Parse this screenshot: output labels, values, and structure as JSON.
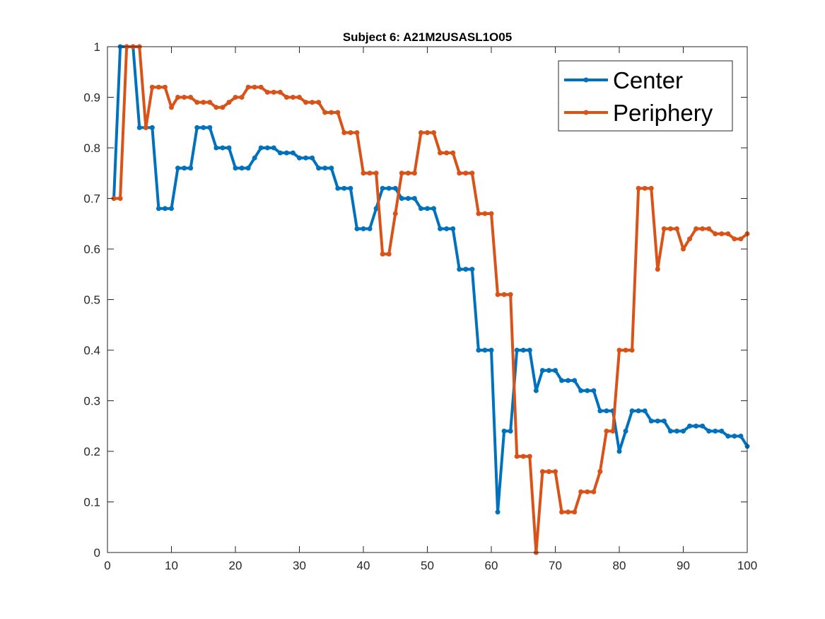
{
  "chart_data": {
    "type": "line",
    "title": "Subject 6: A21M2USASL1O05",
    "xlabel": "",
    "ylabel": "",
    "xlim": [
      0,
      100
    ],
    "ylim": [
      0,
      1
    ],
    "xticks": [
      0,
      10,
      20,
      30,
      40,
      50,
      60,
      70,
      80,
      90,
      100
    ],
    "yticks": [
      0,
      0.1,
      0.2,
      0.3,
      0.4,
      0.5,
      0.6,
      0.7,
      0.8,
      0.9,
      1
    ],
    "xtick_labels": [
      "0",
      "10",
      "20",
      "30",
      "40",
      "50",
      "60",
      "70",
      "80",
      "90",
      "100"
    ],
    "ytick_labels": [
      "0",
      "0.1",
      "0.2",
      "0.3",
      "0.4",
      "0.5",
      "0.6",
      "0.7",
      "0.8",
      "0.9",
      "1"
    ],
    "grid": false,
    "legend_position": "top-right",
    "x": [
      1,
      2,
      3,
      4,
      5,
      6,
      7,
      8,
      9,
      10,
      11,
      12,
      13,
      14,
      15,
      16,
      17,
      18,
      19,
      20,
      21,
      22,
      23,
      24,
      25,
      26,
      27,
      28,
      29,
      30,
      31,
      32,
      33,
      34,
      35,
      36,
      37,
      38,
      39,
      40,
      41,
      42,
      43,
      44,
      45,
      46,
      47,
      48,
      49,
      50,
      51,
      52,
      53,
      54,
      55,
      56,
      57,
      58,
      59,
      60,
      61,
      62,
      63,
      64,
      65,
      66,
      67,
      68,
      69,
      70,
      71,
      72,
      73,
      74,
      75,
      76,
      77,
      78,
      79,
      80,
      81,
      82,
      83,
      84,
      85,
      86,
      87,
      88,
      89,
      90,
      91,
      92,
      93,
      94,
      95,
      96,
      97,
      98,
      99,
      100
    ],
    "series": [
      {
        "name": "Center",
        "color": "#0072BD",
        "values": [
          0.7,
          1.0,
          1.0,
          1.0,
          0.84,
          0.84,
          0.84,
          0.68,
          0.68,
          0.68,
          0.76,
          0.76,
          0.76,
          0.84,
          0.84,
          0.84,
          0.8,
          0.8,
          0.8,
          0.76,
          0.76,
          0.76,
          0.78,
          0.8,
          0.8,
          0.8,
          0.79,
          0.79,
          0.79,
          0.78,
          0.78,
          0.78,
          0.76,
          0.76,
          0.76,
          0.72,
          0.72,
          0.72,
          0.64,
          0.64,
          0.64,
          0.68,
          0.72,
          0.72,
          0.72,
          0.7,
          0.7,
          0.7,
          0.68,
          0.68,
          0.68,
          0.64,
          0.64,
          0.64,
          0.56,
          0.56,
          0.56,
          0.4,
          0.4,
          0.4,
          0.08,
          0.24,
          0.24,
          0.4,
          0.4,
          0.4,
          0.32,
          0.36,
          0.36,
          0.36,
          0.34,
          0.34,
          0.34,
          0.32,
          0.32,
          0.32,
          0.28,
          0.28,
          0.28,
          0.2,
          0.24,
          0.28,
          0.28,
          0.28,
          0.26,
          0.26,
          0.26,
          0.24,
          0.24,
          0.24,
          0.25,
          0.25,
          0.25,
          0.24,
          0.24,
          0.24,
          0.23,
          0.23,
          0.23,
          0.21
        ]
      },
      {
        "name": "Periphery",
        "color": "#D95319",
        "values": [
          0.7,
          0.7,
          1.0,
          1.0,
          1.0,
          0.84,
          0.92,
          0.92,
          0.92,
          0.88,
          0.9,
          0.9,
          0.9,
          0.89,
          0.89,
          0.89,
          0.88,
          0.88,
          0.89,
          0.9,
          0.9,
          0.92,
          0.92,
          0.92,
          0.91,
          0.91,
          0.91,
          0.9,
          0.9,
          0.9,
          0.89,
          0.89,
          0.89,
          0.87,
          0.87,
          0.87,
          0.83,
          0.83,
          0.83,
          0.75,
          0.75,
          0.75,
          0.59,
          0.59,
          0.67,
          0.75,
          0.75,
          0.75,
          0.83,
          0.83,
          0.83,
          0.79,
          0.79,
          0.79,
          0.75,
          0.75,
          0.75,
          0.67,
          0.67,
          0.67,
          0.51,
          0.51,
          0.51,
          0.19,
          0.19,
          0.19,
          0.0,
          0.16,
          0.16,
          0.16,
          0.08,
          0.08,
          0.08,
          0.12,
          0.12,
          0.12,
          0.16,
          0.24,
          0.24,
          0.4,
          0.4,
          0.4,
          0.72,
          0.72,
          0.72,
          0.56,
          0.64,
          0.64,
          0.64,
          0.6,
          0.62,
          0.64,
          0.64,
          0.64,
          0.63,
          0.63,
          0.63,
          0.62,
          0.62,
          0.63
        ]
      }
    ]
  }
}
